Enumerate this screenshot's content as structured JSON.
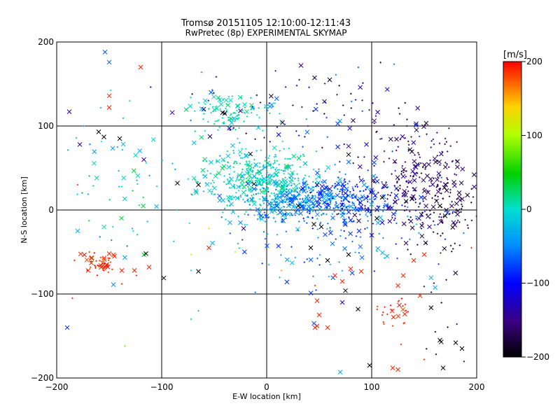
{
  "chart_data": {
    "type": "scatter",
    "title": "Tromsø 20151105 12:10:00-12:11:43",
    "subtitle": "RwPretec (8p) EXPERIMENTAL SKYMAP",
    "xlabel": "E-W location [km]",
    "ylabel": "N-S location [km]",
    "xlim": [
      -200,
      200
    ],
    "ylim": [
      -200,
      200
    ],
    "xticks": [
      -200,
      -100,
      0,
      100,
      200
    ],
    "yticks": [
      -200,
      -100,
      0,
      100,
      200
    ],
    "grid": true,
    "colorbar": {
      "label": "[m/s]",
      "range": [
        -200,
        200
      ],
      "ticks": [
        200,
        100,
        0,
        -100,
        -200
      ],
      "colormap": "rainbow (black → purple → blue → cyan → green → yellow → red)"
    },
    "series": [
      {
        "marker": "x",
        "points": [
          [
            -154,
            188,
            -70
          ],
          [
            -150,
            176,
            -70
          ],
          [
            -120,
            170,
            190
          ],
          [
            -150,
            136,
            190
          ],
          [
            -150,
            122,
            190
          ],
          [
            -188,
            117,
            -140
          ],
          [
            -160,
            93,
            -200
          ],
          [
            -155,
            87,
            -200
          ],
          [
            -140,
            85,
            -200
          ],
          [
            -178,
            78,
            -140
          ],
          [
            -117,
            60,
            -140
          ],
          [
            -85,
            32,
            -200
          ],
          [
            -65,
            30,
            -200
          ],
          [
            -53,
            140,
            -70
          ],
          [
            -40,
            115,
            -200
          ],
          [
            -25,
            118,
            -150
          ],
          [
            -90,
            116,
            -140
          ],
          [
            -60,
            120,
            -140
          ],
          [
            -22,
            -22,
            -140
          ],
          [
            -115,
            -52,
            -200
          ],
          [
            -65,
            -73,
            -200
          ],
          [
            -98,
            -81,
            -200
          ],
          [
            -150,
            -52,
            190
          ],
          [
            -145,
            -55,
            190
          ],
          [
            -138,
            -72,
            190
          ],
          [
            -112,
            -68,
            190
          ],
          [
            -126,
            -72,
            190
          ],
          [
            -167,
            -63,
            190
          ],
          [
            -170,
            -72,
            190
          ],
          [
            -158,
            -66,
            190
          ],
          [
            15,
            104,
            -200
          ],
          [
            60,
            155,
            -200
          ],
          [
            78,
            76,
            -140
          ],
          [
            78,
            66,
            -200
          ],
          [
            78,
            -53,
            -200
          ],
          [
            95,
            78,
            -120
          ],
          [
            130,
            40,
            -140
          ],
          [
            145,
            -10,
            -140
          ],
          [
            155,
            -20,
            -140
          ],
          [
            165,
            5,
            -200
          ],
          [
            170,
            -7,
            -200
          ],
          [
            178,
            -15,
            -160
          ],
          [
            45,
            -17,
            -200
          ],
          [
            52,
            -20,
            -200
          ],
          [
            48,
            30,
            -140
          ],
          [
            60,
            25,
            -140
          ],
          [
            75,
            20,
            -110
          ],
          [
            88,
            -25,
            -90
          ],
          [
            100,
            -30,
            -100
          ],
          [
            110,
            -15,
            -100
          ],
          [
            -12,
            31,
            -200
          ],
          [
            30,
            5,
            -200
          ],
          [
            42,
            -45,
            -200
          ],
          [
            58,
            -60,
            -200
          ],
          [
            72,
            -85,
            190
          ],
          [
            75,
            -96,
            -200
          ],
          [
            80,
            -70,
            190
          ],
          [
            65,
            -78,
            190
          ],
          [
            90,
            -73,
            190
          ],
          [
            125,
            -90,
            190
          ],
          [
            130,
            -78,
            190
          ],
          [
            140,
            -60,
            190
          ],
          [
            150,
            -53,
            190
          ],
          [
            146,
            -102,
            190
          ],
          [
            48,
            -108,
            190
          ],
          [
            50,
            -125,
            190
          ],
          [
            48,
            -138,
            190
          ],
          [
            46,
            -140,
            190
          ],
          [
            58,
            -140,
            190
          ],
          [
            45,
            -135,
            -70
          ],
          [
            72,
            -110,
            -140
          ],
          [
            87,
            -118,
            -200
          ],
          [
            98,
            -185,
            -200
          ],
          [
            105,
            -10,
            -200
          ],
          [
            120,
            -188,
            190
          ],
          [
            125,
            -190,
            190
          ],
          [
            165,
            -155,
            -200
          ],
          [
            168,
            -188,
            -200
          ],
          [
            180,
            -158,
            -200
          ],
          [
            186,
            -165,
            -200
          ],
          [
            -12,
            25,
            -60
          ],
          [
            110,
            15,
            -200
          ],
          [
            -55,
            -45,
            190
          ],
          [
            -190,
            -140,
            -80
          ],
          [
            70,
            -193,
            -30
          ],
          [
            -35,
            -15,
            -30
          ],
          [
            -180,
            -25,
            -30
          ]
        ]
      },
      {
        "marker": "+",
        "points": [
          [
            -185,
            -105,
            190
          ],
          [
            -180,
            30,
            190
          ],
          [
            -138,
            -88,
            190
          ],
          [
            -124,
            -78,
            190
          ],
          [
            -128,
            -22,
            -40
          ],
          [
            -135,
            -162,
            90
          ],
          [
            -65,
            -120,
            30
          ],
          [
            -72,
            -130,
            30
          ],
          [
            -62,
            164,
            40
          ],
          [
            -72,
            -53,
            120
          ],
          [
            -55,
            -22,
            130
          ],
          [
            -30,
            -50,
            120
          ],
          [
            2,
            -65,
            -30
          ],
          [
            14,
            -72,
            150
          ],
          [
            46,
            -90,
            190
          ],
          [
            110,
            -125,
            190
          ],
          [
            120,
            -138,
            190
          ],
          [
            128,
            -160,
            190
          ],
          [
            150,
            -178,
            190
          ],
          [
            195,
            -45,
            190
          ]
        ]
      }
    ],
    "clusters": [
      {
        "cx": -10,
        "cy": 35,
        "sx": 28,
        "sy": 20,
        "n": 420,
        "vmin": -30,
        "vmax": 30
      },
      {
        "cx": 30,
        "cy": 12,
        "sx": 25,
        "sy": 12,
        "n": 260,
        "vmin": -75,
        "vmax": -20
      },
      {
        "cx": 80,
        "cy": 10,
        "sx": 26,
        "sy": 16,
        "n": 230,
        "vmin": -120,
        "vmax": -40
      },
      {
        "cx": 140,
        "cy": 40,
        "sx": 22,
        "sy": 30,
        "n": 220,
        "vmin": -185,
        "vmax": -135
      },
      {
        "cx": 170,
        "cy": 0,
        "sx": 20,
        "sy": 25,
        "n": 80,
        "vmin": -200,
        "vmax": -155
      },
      {
        "cx": -35,
        "cy": 115,
        "sx": 18,
        "sy": 12,
        "n": 110,
        "vmin": -20,
        "vmax": 30
      },
      {
        "cx": 40,
        "cy": 120,
        "sx": 50,
        "sy": 30,
        "n": 100,
        "vmin": -200,
        "vmax": -40
      },
      {
        "cx": -140,
        "cy": 30,
        "sx": 30,
        "sy": 40,
        "n": 60,
        "vmin": -60,
        "vmax": 40
      },
      {
        "cx": -160,
        "cy": -62,
        "sx": 10,
        "sy": 7,
        "n": 45,
        "vmin": 180,
        "vmax": 200
      },
      {
        "cx": 120,
        "cy": -125,
        "sx": 8,
        "sy": 10,
        "n": 25,
        "vmin": 180,
        "vmax": 200
      },
      {
        "cx": 80,
        "cy": -20,
        "sx": 60,
        "sy": 40,
        "n": 140,
        "vmin": -90,
        "vmax": -20
      },
      {
        "cx": 170,
        "cy": -90,
        "sx": 15,
        "sy": 60,
        "n": 30,
        "vmin": -200,
        "vmax": -160
      }
    ]
  }
}
